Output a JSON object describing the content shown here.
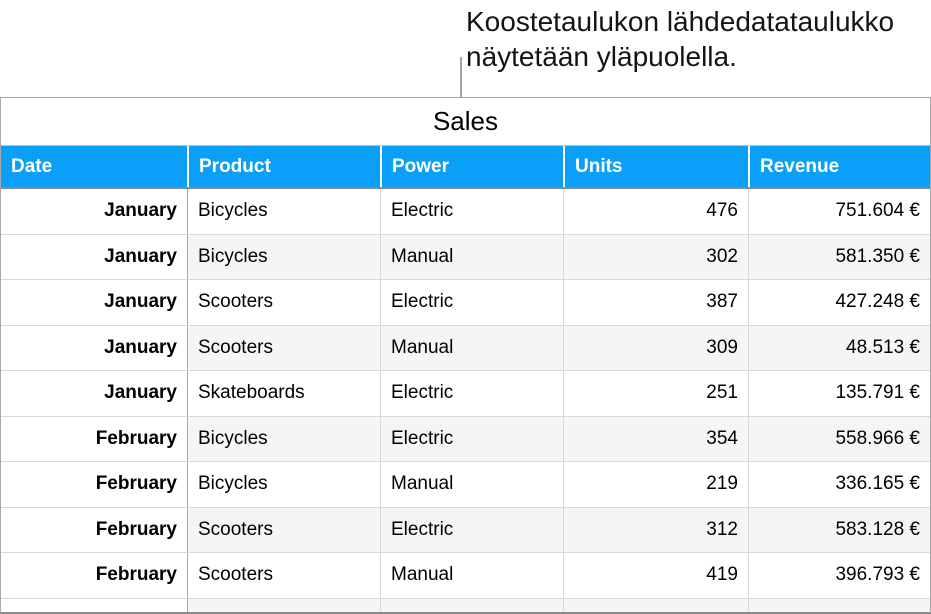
{
  "callout": {
    "line1": "Koostetaulukon lähdedatataulukko",
    "line2": "näytetään yläpuolella."
  },
  "table": {
    "title": "Sales",
    "columns": [
      {
        "key": "date",
        "label": "Date"
      },
      {
        "key": "product",
        "label": "Product"
      },
      {
        "key": "power",
        "label": "Power"
      },
      {
        "key": "units",
        "label": "Units"
      },
      {
        "key": "revenue",
        "label": "Revenue"
      }
    ],
    "rows": [
      [
        "January",
        "Bicycles",
        "Electric",
        "476",
        "751.604 €"
      ],
      [
        "January",
        "Bicycles",
        "Manual",
        "302",
        "581.350 €"
      ],
      [
        "January",
        "Scooters",
        "Electric",
        "387",
        "427.248 €"
      ],
      [
        "January",
        "Scooters",
        "Manual",
        "309",
        "48.513 €"
      ],
      [
        "January",
        "Skateboards",
        "Electric",
        "251",
        "135.791 €"
      ],
      [
        "February",
        "Bicycles",
        "Electric",
        "354",
        "558.966 €"
      ],
      [
        "February",
        "Bicycles",
        "Manual",
        "219",
        "336.165 €"
      ],
      [
        "February",
        "Scooters",
        "Electric",
        "312",
        "583.128 €"
      ],
      [
        "February",
        "Scooters",
        "Manual",
        "419",
        "396.793 €"
      ]
    ]
  },
  "colors": {
    "header_bg": "#0aa0fa",
    "header_text": "#ffffff",
    "alt_row_bg": "#f5f5f3",
    "callout_line": "#a3a3a3"
  }
}
